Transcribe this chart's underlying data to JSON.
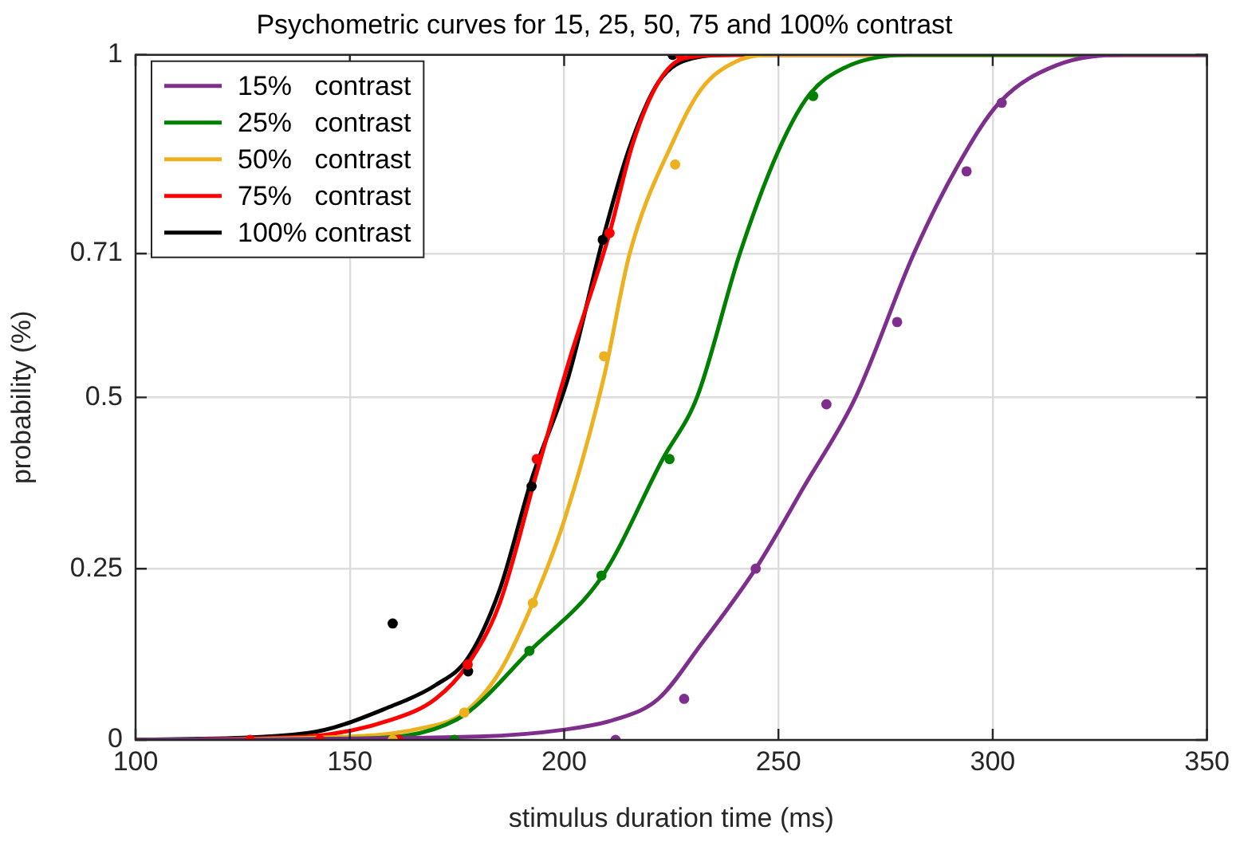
{
  "chart_data": {
    "type": "line",
    "title": "Psychometric curves for 15, 25, 50, 75 and 100% contrast",
    "xlabel": "stimulus duration time (ms)",
    "ylabel": "probability (%)",
    "xlim": [
      100,
      350
    ],
    "xticks": [
      100,
      150,
      200,
      250,
      300,
      350
    ],
    "ylim": [
      0,
      1
    ],
    "yticks": [
      0,
      0.25,
      0.5,
      0.71,
      1
    ],
    "grid": true,
    "legend": "top left",
    "series": [
      {
        "name": "15%   contrast",
        "type": "line",
        "color": "#7e2f8e",
        "marker": "none",
        "x": [
          100,
          180,
          200,
          212,
          222,
          232,
          244.7,
          256,
          268,
          281.6,
          292,
          301.5,
          315,
          331,
          350
        ],
        "values": [
          0,
          0.005,
          0.015,
          0.03,
          0.06,
          0.14,
          0.25,
          0.37,
          0.5,
          0.71,
          0.84,
          0.93,
          0.985,
          1,
          1
        ]
      },
      {
        "name": "25%   contrast",
        "type": "line",
        "color": "#008000",
        "marker": "none",
        "x": [
          100,
          150,
          175,
          192,
          209,
          223,
          231,
          241,
          250,
          257,
          265,
          280,
          350
        ],
        "values": [
          0,
          0.002,
          0.03,
          0.13,
          0.24,
          0.41,
          0.5,
          0.71,
          0.86,
          0.94,
          0.98,
          1,
          1
        ]
      },
      {
        "name": "50%   contrast",
        "type": "line",
        "color": "#edb120",
        "marker": "none",
        "x": [
          100,
          150,
          165,
          176.7,
          185,
          192.7,
          200,
          209.3,
          215.3,
          225.9,
          232,
          240,
          250,
          350
        ],
        "values": [
          0,
          0.005,
          0.015,
          0.04,
          0.1,
          0.2,
          0.32,
          0.53,
          0.71,
          0.88,
          0.95,
          0.99,
          1,
          1
        ]
      },
      {
        "name": "75%   contrast",
        "type": "line",
        "color": "#ff0000",
        "marker": "none",
        "x": [
          100,
          140,
          160,
          170,
          177.5,
          185,
          193.6,
          201,
          210.6,
          216,
          222,
          228,
          240,
          350
        ],
        "values": [
          0,
          0.005,
          0.03,
          0.06,
          0.11,
          0.2,
          0.39,
          0.55,
          0.74,
          0.87,
          0.96,
          0.995,
          1,
          1
        ]
      },
      {
        "name": "100% contrast",
        "type": "line",
        "color": "#000000",
        "marker": "none",
        "x": [
          100,
          140,
          160,
          170,
          177.6,
          185,
          192.4,
          201,
          209,
          215,
          222,
          230,
          240,
          350
        ],
        "values": [
          0,
          0.01,
          0.05,
          0.08,
          0.12,
          0.22,
          0.38,
          0.53,
          0.73,
          0.86,
          0.96,
          0.995,
          1,
          1
        ]
      },
      {
        "type": "scatter",
        "color": "#7e2f8e",
        "marker": "circle",
        "x": [
          212,
          228,
          244.7,
          261.2,
          277.7,
          293.9,
          302.1
        ],
        "values": [
          0,
          0.06,
          0.25,
          0.49,
          0.61,
          0.83,
          0.93
        ]
      },
      {
        "type": "scatter",
        "color": "#008000",
        "marker": "circle",
        "x": [
          174.4,
          191.9,
          208.7,
          224.6,
          258.1
        ],
        "values": [
          0,
          0.13,
          0.24,
          0.41,
          0.94
        ]
      },
      {
        "type": "scatter",
        "color": "#edb120",
        "marker": "circle",
        "x": [
          160,
          176.7,
          192.7,
          209.3,
          225.9
        ],
        "values": [
          0,
          0.04,
          0.2,
          0.56,
          0.84
        ]
      },
      {
        "type": "scatter",
        "color": "#ff0000",
        "marker": "circle",
        "x": [
          126.7,
          143,
          161.3,
          177.5,
          193.6,
          210.6,
          227.1
        ],
        "values": [
          0,
          0,
          0,
          0.11,
          0.41,
          0.74,
          1
        ]
      },
      {
        "type": "scatter",
        "color": "#000000",
        "marker": "circle",
        "x": [
          160,
          177.6,
          192.4,
          209,
          225.3
        ],
        "values": [
          0.17,
          0.1,
          0.37,
          0.73,
          1
        ]
      }
    ]
  }
}
